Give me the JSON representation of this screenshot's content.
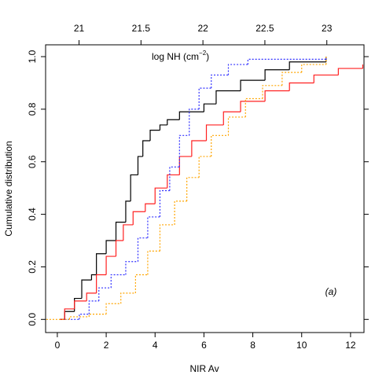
{
  "chart_data": {
    "type": "step",
    "x_label": "NIR Av",
    "y_label": "Cumulative distribution",
    "top_axis_label": {
      "text": "log NH (cm",
      "superscript": "−2",
      "suffix": ")"
    },
    "annotation": "(a)",
    "xlim": [
      -0.48,
      12.55
    ],
    "xticks": [
      0,
      2,
      4,
      6,
      8,
      10,
      12
    ],
    "x2lim": [
      20.73,
      23.3
    ],
    "x2ticks": [
      21,
      21.5,
      22,
      22.5,
      23
    ],
    "ylim": [
      -0.05,
      1.045
    ],
    "yticks": [
      {
        "value": 0,
        "label": "0.0"
      },
      {
        "value": 0.2,
        "label": "0.2"
      },
      {
        "value": 0.4,
        "label": "0.4"
      },
      {
        "value": 0.6,
        "label": "0.6"
      },
      {
        "value": 0.8,
        "label": "0.8"
      },
      {
        "value": 1,
        "label": "1.0"
      }
    ],
    "series": [
      {
        "color": "#000000",
        "linestyle": "solid",
        "x": [
          0.1,
          0.3,
          0.7,
          1.0,
          1.4,
          1.6,
          2.0,
          2.4,
          2.8,
          3.0,
          3.3,
          3.5,
          3.8,
          4.2,
          4.5,
          5.0,
          6.0,
          6.5,
          7.5,
          8.5,
          9.5,
          11.0
        ],
        "values": [
          0.0,
          0.03,
          0.08,
          0.15,
          0.17,
          0.25,
          0.3,
          0.37,
          0.45,
          0.55,
          0.62,
          0.68,
          0.72,
          0.74,
          0.76,
          0.79,
          0.82,
          0.87,
          0.91,
          0.95,
          0.98,
          1.0
        ]
      },
      {
        "color": "#ff2020",
        "linestyle": "solid",
        "x": [
          0.1,
          0.3,
          0.7,
          1.2,
          1.6,
          2.0,
          2.4,
          2.7,
          3.1,
          3.6,
          4.0,
          4.5,
          5.0,
          5.5,
          6.1,
          6.8,
          7.5,
          8.5,
          9.5,
          10.5,
          11.5,
          12.5
        ],
        "values": [
          0.0,
          0.04,
          0.07,
          0.1,
          0.17,
          0.24,
          0.3,
          0.36,
          0.41,
          0.44,
          0.5,
          0.55,
          0.62,
          0.68,
          0.74,
          0.79,
          0.83,
          0.87,
          0.9,
          0.93,
          0.955,
          0.97
        ]
      },
      {
        "color": "#3030ff",
        "linestyle": "dotted",
        "x": [
          0.3,
          0.9,
          1.3,
          1.7,
          2.2,
          2.8,
          3.3,
          3.7,
          4.2,
          4.6,
          5.0,
          5.4,
          5.8,
          6.3,
          7.0,
          7.8,
          11.0
        ],
        "values": [
          0.0,
          0.02,
          0.07,
          0.12,
          0.17,
          0.22,
          0.31,
          0.39,
          0.49,
          0.58,
          0.7,
          0.8,
          0.88,
          0.93,
          0.97,
          0.99,
          1.0
        ]
      },
      {
        "color": "#ffa500",
        "linestyle": "dotted",
        "x": [
          -0.45,
          0.5,
          1.3,
          2.0,
          2.6,
          3.2,
          3.7,
          4.2,
          4.8,
          5.3,
          5.8,
          6.3,
          7.0,
          7.7,
          8.4,
          9.2,
          10.0,
          11.0
        ],
        "values": [
          0.0,
          0.01,
          0.02,
          0.06,
          0.1,
          0.17,
          0.26,
          0.36,
          0.45,
          0.54,
          0.62,
          0.7,
          0.77,
          0.84,
          0.89,
          0.94,
          0.97,
          1.0
        ]
      }
    ]
  }
}
